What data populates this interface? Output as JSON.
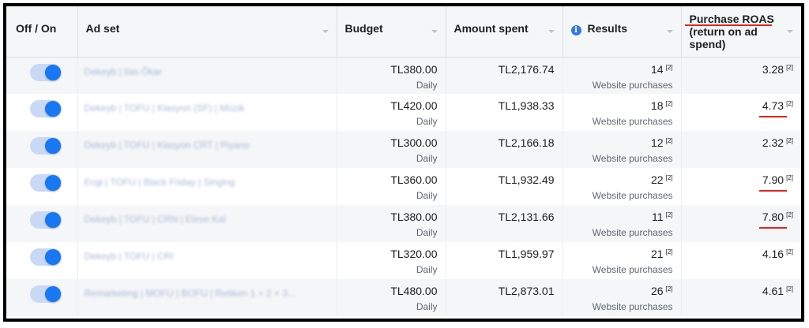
{
  "columns": {
    "toggle": "Off / On",
    "adset": "Ad set",
    "budget": "Budget",
    "spent": "Amount spent",
    "results": "Results",
    "roas_line1": "Purchase ROAS",
    "roas_line2": "(return on ad",
    "roas_line3": "spend)"
  },
  "icons": {
    "info": "i"
  },
  "colors": {
    "toggle_on": "#1877f2",
    "highlight": "#e0241e",
    "info": "#3578e5"
  },
  "rows": [
    {
      "on": true,
      "adset": "Dekeyb | Ilas Ökar",
      "budget": "TL380.00",
      "budget_type": "Daily",
      "spent": "TL2,176.74",
      "results": "14",
      "results_type": "Website purchases",
      "roas": "3.28",
      "ref": "[2]"
    },
    {
      "on": true,
      "adset": "Dekeyb | TOFU | Klasyon (SF) | Müzik",
      "budget": "TL420.00",
      "budget_type": "Daily",
      "spent": "TL1,938.33",
      "results": "18",
      "results_type": "Website purchases",
      "roas": "4.73",
      "ref": "[2]"
    },
    {
      "on": true,
      "adset": "Dekeyb | TOFU | Klasyon CRT | Piyano",
      "budget": "TL300.00",
      "budget_type": "Daily",
      "spent": "TL2,166.18",
      "results": "12",
      "results_type": "Website purchases",
      "roas": "2.32",
      "ref": "[2]"
    },
    {
      "on": true,
      "adset": "Ecgi | TOFU | Black Friday | Singing",
      "budget": "TL360.00",
      "budget_type": "Daily",
      "spent": "TL1,932.49",
      "results": "22",
      "results_type": "Website purchases",
      "roas": "7.90",
      "ref": "[2]"
    },
    {
      "on": true,
      "adset": "Dekeyb | TOFU | CRN | Eleve Kal",
      "budget": "TL380.00",
      "budget_type": "Daily",
      "spent": "TL2,131.66",
      "results": "11",
      "results_type": "Website purchases",
      "roas": "7.80",
      "ref": "[2]"
    },
    {
      "on": true,
      "adset": "Dekeyb | TOFU | CRI",
      "budget": "TL320.00",
      "budget_type": "Daily",
      "spent": "TL1,959.97",
      "results": "21",
      "results_type": "Website purchases",
      "roas": "4.16",
      "ref": "[2]"
    },
    {
      "on": true,
      "adset": "Remarketing | MOFU | BOFU | Retiken 1 + 2 + 3...",
      "budget": "TL480.00",
      "budget_type": "Daily",
      "spent": "TL2,873.01",
      "results": "26",
      "results_type": "Website purchases",
      "roas": "4.61",
      "ref": "[2]"
    }
  ]
}
